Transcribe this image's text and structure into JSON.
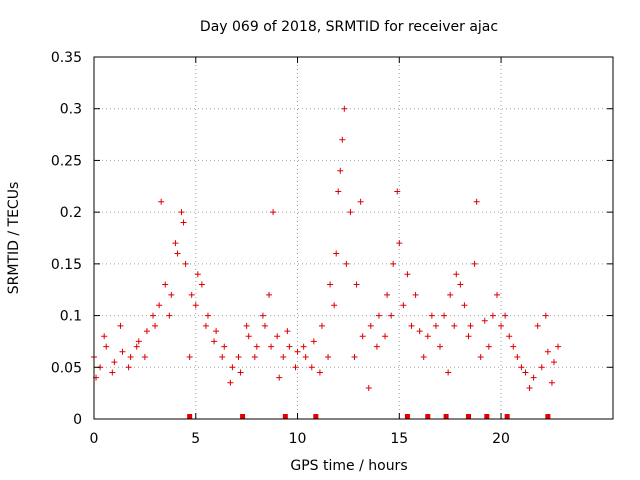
{
  "chart_data": {
    "type": "scatter",
    "title": "Day 069 of 2018, SRMTID for receiver ajac",
    "xlabel": "GPS time / hours",
    "ylabel": "SRMTID / TECUs",
    "xlim": [
      0,
      25.5
    ],
    "ylim": [
      0,
      0.35
    ],
    "xticks": [
      0,
      5,
      10,
      15,
      20
    ],
    "xtick_labels": [
      "0",
      "5",
      "10",
      "15",
      "20"
    ],
    "yticks": [
      0,
      0.05,
      0.1,
      0.15,
      0.2,
      0.25,
      0.3,
      0.35
    ],
    "ytick_labels": [
      "0",
      "0.05",
      "0.1",
      "0.15",
      "0.2",
      "0.25",
      "0.3",
      "0.35"
    ],
    "grid": true,
    "marker": "plus",
    "color": "#e00000",
    "series": [
      {
        "name": "SRMTID",
        "x": [
          0.0,
          0.3,
          0.6,
          1.0,
          1.4,
          1.8,
          2.2,
          2.6,
          3.0,
          3.2,
          3.5,
          3.8,
          4.1,
          4.3,
          4.5,
          4.8,
          5.0,
          5.3,
          5.6,
          6.0,
          6.4,
          6.8,
          7.2,
          7.6,
          8.0,
          8.4,
          8.6,
          8.8,
          9.0,
          9.3,
          9.6,
          10.0,
          10.4,
          10.8,
          11.2,
          11.6,
          11.9,
          12.1,
          12.3,
          12.6,
          12.9,
          13.2,
          13.6,
          14.0,
          14.4,
          14.7,
          14.9,
          15.2,
          15.6,
          16.0,
          16.4,
          16.8,
          17.2,
          17.5,
          17.8,
          18.2,
          18.5,
          18.8,
          19.2,
          19.6,
          20.0,
          20.4,
          20.8,
          21.2,
          21.6,
          22.0,
          22.3,
          22.6,
          0.1,
          0.5,
          0.9,
          1.3,
          1.7,
          2.1,
          2.5,
          2.9,
          3.3,
          3.7,
          4.0,
          4.4,
          4.7,
          5.1,
          5.5,
          5.9,
          6.3,
          6.7,
          7.1,
          7.5,
          7.9,
          8.3,
          8.7,
          9.1,
          9.5,
          9.9,
          10.3,
          10.7,
          11.1,
          11.5,
          11.8,
          12.0,
          12.2,
          12.4,
          12.8,
          13.1,
          13.5,
          13.9,
          14.3,
          14.6,
          15.0,
          15.4,
          15.8,
          16.2,
          16.6,
          17.0,
          17.4,
          17.7,
          18.0,
          18.4,
          18.7,
          19.0,
          19.4,
          19.8,
          20.2,
          20.6,
          21.0,
          21.4,
          21.8,
          22.2,
          22.5,
          22.8
        ],
        "y": [
          0.06,
          0.05,
          0.07,
          0.055,
          0.065,
          0.06,
          0.075,
          0.085,
          0.09,
          0.11,
          0.13,
          0.12,
          0.16,
          0.2,
          0.15,
          0.12,
          0.11,
          0.13,
          0.1,
          0.085,
          0.07,
          0.05,
          0.045,
          0.08,
          0.07,
          0.09,
          0.12,
          0.2,
          0.08,
          0.06,
          0.07,
          0.065,
          0.06,
          0.075,
          0.09,
          0.13,
          0.16,
          0.24,
          0.3,
          0.2,
          0.13,
          0.08,
          0.09,
          0.1,
          0.12,
          0.15,
          0.22,
          0.11,
          0.09,
          0.085,
          0.08,
          0.09,
          0.1,
          0.12,
          0.14,
          0.11,
          0.09,
          0.21,
          0.095,
          0.1,
          0.09,
          0.08,
          0.06,
          0.045,
          0.04,
          0.05,
          0.065,
          0.055,
          0.04,
          0.08,
          0.045,
          0.09,
          0.05,
          0.07,
          0.06,
          0.1,
          0.21,
          0.1,
          0.17,
          0.19,
          0.06,
          0.14,
          0.09,
          0.075,
          0.06,
          0.035,
          0.06,
          0.09,
          0.06,
          0.1,
          0.07,
          0.04,
          0.085,
          0.05,
          0.07,
          0.05,
          0.045,
          0.06,
          0.11,
          0.22,
          0.27,
          0.15,
          0.06,
          0.21,
          0.03,
          0.07,
          0.08,
          0.1,
          0.17,
          0.14,
          0.12,
          0.06,
          0.1,
          0.07,
          0.045,
          0.09,
          0.13,
          0.08,
          0.15,
          0.06,
          0.07,
          0.12,
          0.1,
          0.07,
          0.05,
          0.03,
          0.09,
          0.1,
          0.035,
          0.07
        ]
      }
    ],
    "baseline_markers_x": [
      4.7,
      7.3,
      9.4,
      10.9,
      15.4,
      16.4,
      17.3,
      18.4,
      19.3,
      20.3,
      22.3
    ]
  }
}
